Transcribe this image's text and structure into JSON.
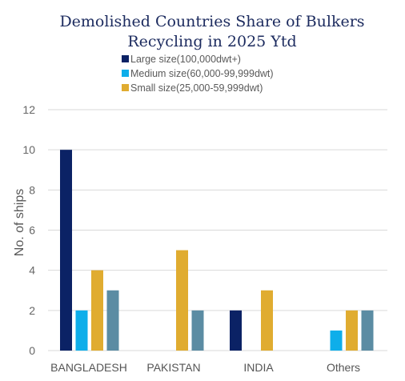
{
  "chart_data": {
    "type": "bar",
    "title_lines": [
      "Demolished Countries Share of Bulkers",
      "Recycling in 2025 Ytd"
    ],
    "xlabel": "",
    "ylabel": "No. of ships",
    "ylim": [
      0,
      12
    ],
    "yticks": [
      0,
      2,
      4,
      6,
      8,
      10,
      12
    ],
    "grid": true,
    "legend_position": "top",
    "categories": [
      "BANGLADESH",
      "PAKISTAN",
      "INDIA",
      "Others"
    ],
    "series": [
      {
        "name": "Large size(100,000dwt+)",
        "color": "#0b2265",
        "values": [
          10,
          0,
          2,
          0
        ]
      },
      {
        "name": "Medium size(60,000-99,999dwt)",
        "color": "#0eaeea",
        "values": [
          2,
          0,
          0,
          1
        ]
      },
      {
        "name": "Small size(25,000-59,999dwt)",
        "color": "#e0ac30",
        "values": [
          4,
          5,
          3,
          2
        ]
      },
      {
        "name": "",
        "color": "#5b8ca3",
        "values": [
          3,
          2,
          0,
          2
        ]
      }
    ]
  }
}
